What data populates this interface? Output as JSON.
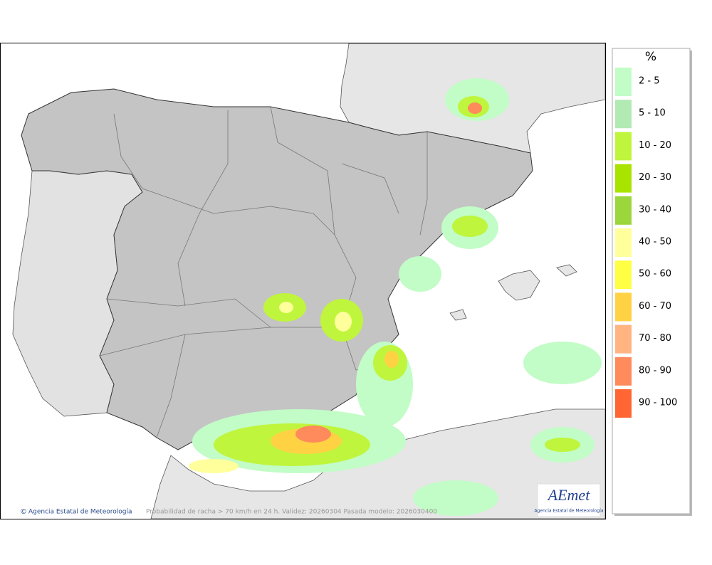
{
  "legend": {
    "title": "%",
    "items": [
      {
        "label": "2 - 5",
        "color": "#c2fcc6"
      },
      {
        "label": "5 - 10",
        "color": "#b2eab4"
      },
      {
        "label": "10 - 20",
        "color": "#bff53c"
      },
      {
        "label": "20 - 30",
        "color": "#a8e400"
      },
      {
        "label": "30 - 40",
        "color": "#9ad63c"
      },
      {
        "label": "40 - 50",
        "color": "#ffff9c"
      },
      {
        "label": "50 - 60",
        "color": "#ffff44"
      },
      {
        "label": "60 - 70",
        "color": "#ffd244"
      },
      {
        "label": "70 - 80",
        "color": "#ffb482"
      },
      {
        "label": "80 - 90",
        "color": "#ff8a5c"
      },
      {
        "label": "90 - 100",
        "color": "#ff6633"
      }
    ]
  },
  "map": {
    "credit": "Agencia Estatal de Meteorología",
    "caption": "Probabilidad de racha > 70 km/h en 24 h. Validez: 20260304 Pasada modelo: 2026030400",
    "logo": {
      "name": "AEmet",
      "subtitle": "Agencia Estatal de Meteorología"
    }
  }
}
